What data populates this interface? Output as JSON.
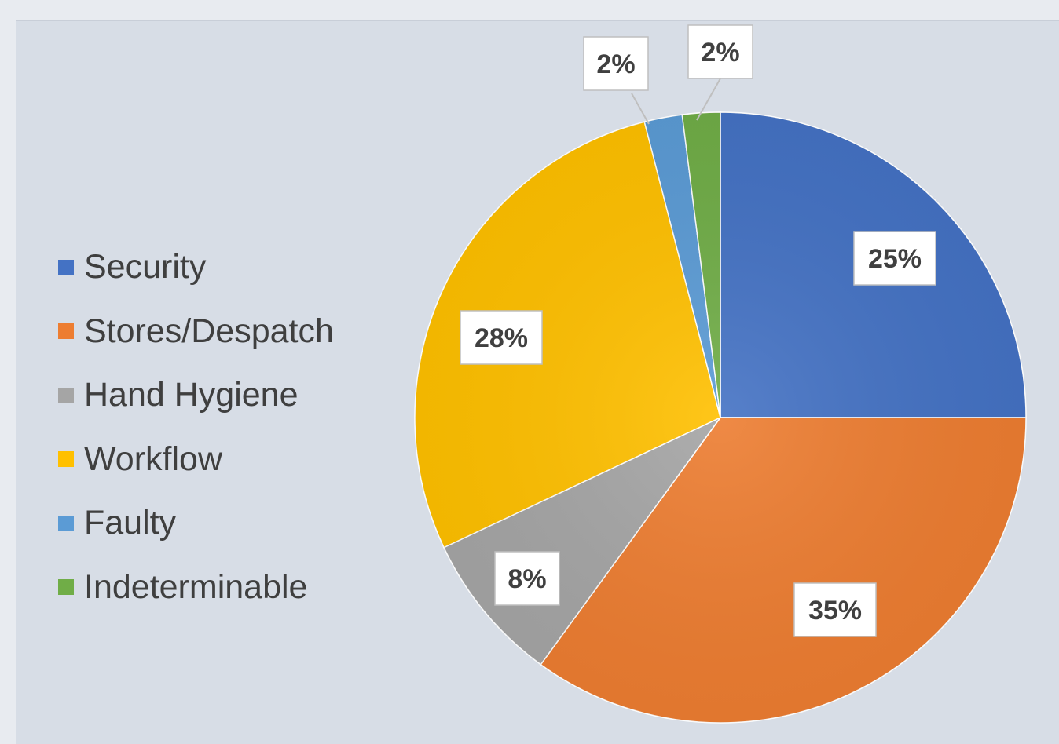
{
  "chart_data": {
    "type": "pie",
    "categories": [
      "Security",
      "Stores/Despatch",
      "Hand Hygiene",
      "Workflow",
      "Faulty",
      "Indeterminable"
    ],
    "values": [
      25,
      35,
      8,
      28,
      2,
      2
    ],
    "data_labels": [
      "25%",
      "35%",
      "8%",
      "28%",
      "2%",
      "2%"
    ],
    "colors": [
      "#4472c4",
      "#ed7d31",
      "#a5a5a5",
      "#ffc000",
      "#5b9bd5",
      "#70ad47"
    ],
    "slice_order_clockwise_from_top": [
      "Security",
      "Stores/Despatch",
      "Hand Hygiene",
      "Workflow",
      "Faulty",
      "Indeterminable"
    ],
    "legend_position": "left",
    "title": ""
  }
}
